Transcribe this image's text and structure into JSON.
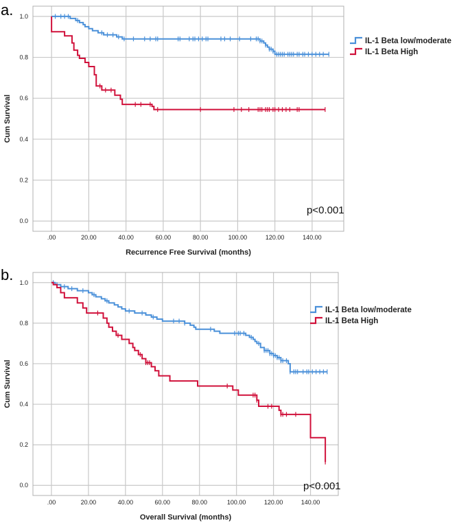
{
  "chart_data": [
    {
      "type": "line",
      "panel_label": "a.",
      "xlabel": "Recurrence Free Survival (months)",
      "ylabel": "Cum Survival",
      "xlim": [
        -10,
        157
      ],
      "ylim": [
        -0.05,
        1.05
      ],
      "xticks": [
        0,
        20,
        40,
        60,
        80,
        100,
        120,
        140
      ],
      "xtick_labels": [
        ".00",
        "20.00",
        "40.00",
        "60.00",
        "80.00",
        "100.00",
        "120.00",
        "140.00"
      ],
      "yticks": [
        0,
        0.2,
        0.4,
        0.6,
        0.8,
        1.0
      ],
      "ytick_labels": [
        "0.0",
        "0.2",
        "0.4",
        "0.6",
        "0.8",
        "1.0"
      ],
      "grid": true,
      "legend_position": "right",
      "annotation": "p<0.001",
      "series": [
        {
          "name": "IL-1 Beta low/moderate",
          "color": "#4a90d9",
          "steps": [
            [
              0,
              1.0
            ],
            [
              10,
              0.99
            ],
            [
              13,
              0.98
            ],
            [
              15,
              0.97
            ],
            [
              17,
              0.96
            ],
            [
              18,
              0.95
            ],
            [
              20,
              0.94
            ],
            [
              22,
              0.93
            ],
            [
              25,
              0.92
            ],
            [
              28,
              0.91
            ],
            [
              35,
              0.9
            ],
            [
              38,
              0.89
            ],
            [
              112,
              0.88
            ],
            [
              114,
              0.87
            ],
            [
              115,
              0.86
            ],
            [
              116,
              0.85
            ],
            [
              117,
              0.84
            ],
            [
              119,
              0.83
            ],
            [
              120,
              0.82
            ],
            [
              120,
              0.815
            ],
            [
              149,
              0.815
            ]
          ],
          "censored": [
            2,
            5,
            7,
            9,
            14,
            27,
            30,
            33,
            36,
            39,
            44,
            50,
            53,
            56,
            57,
            68,
            69,
            74,
            76,
            77,
            79,
            81,
            83,
            84,
            91,
            93,
            96,
            101,
            107,
            110,
            111,
            112,
            113,
            115,
            117,
            118,
            119,
            121,
            122,
            123,
            124,
            125,
            127,
            128,
            129,
            130,
            132,
            133,
            135,
            136,
            138,
            140,
            142,
            144,
            146,
            149
          ]
        },
        {
          "name": "IL-1 Beta High",
          "color": "#d0103a",
          "steps": [
            [
              0,
              1.0
            ],
            [
              0,
              0.925
            ],
            [
              7,
              0.905
            ],
            [
              11,
              0.87
            ],
            [
              12,
              0.835
            ],
            [
              14,
              0.81
            ],
            [
              15,
              0.795
            ],
            [
              18,
              0.775
            ],
            [
              20,
              0.755
            ],
            [
              23,
              0.715
            ],
            [
              24,
              0.66
            ],
            [
              27,
              0.64
            ],
            [
              34,
              0.615
            ],
            [
              37,
              0.595
            ],
            [
              38,
              0.57
            ],
            [
              52,
              0.57
            ],
            [
              54,
              0.56
            ],
            [
              55,
              0.545
            ],
            [
              147,
              0.545
            ]
          ],
          "censored": [
            26,
            29,
            32,
            45,
            48,
            53,
            57,
            80,
            98,
            102,
            106,
            111,
            112,
            113,
            115,
            116,
            117,
            119,
            120,
            122,
            124,
            126,
            128,
            132,
            133,
            147
          ]
        }
      ]
    },
    {
      "type": "line",
      "panel_label": "b.",
      "xlabel": "Overall Survival (months)",
      "ylabel": "Cum Survival",
      "xlim": [
        -10,
        155
      ],
      "ylim": [
        -0.05,
        1.05
      ],
      "xticks": [
        0,
        20,
        40,
        60,
        80,
        100,
        120,
        140
      ],
      "xtick_labels": [
        ".00",
        "20.00",
        "40.00",
        "60.00",
        "80.00",
        "100.00",
        "120.00",
        "140.00"
      ],
      "yticks": [
        0,
        0.2,
        0.4,
        0.6,
        0.8,
        1.0
      ],
      "ytick_labels": [
        "0.0",
        "0.2",
        "0.4",
        "0.6",
        "0.8",
        "1.0"
      ],
      "grid": true,
      "legend_position": "right",
      "annotation": "p<0.001",
      "series": [
        {
          "name": "IL-1 Beta low/moderate",
          "color": "#4a90d9",
          "steps": [
            [
              0,
              1.0
            ],
            [
              2,
              0.99
            ],
            [
              5,
              0.98
            ],
            [
              9,
              0.97
            ],
            [
              14,
              0.96
            ],
            [
              20,
              0.95
            ],
            [
              22,
              0.94
            ],
            [
              24,
              0.93
            ],
            [
              27,
              0.92
            ],
            [
              29,
              0.91
            ],
            [
              31,
              0.9
            ],
            [
              34,
              0.89
            ],
            [
              36,
              0.88
            ],
            [
              38,
              0.87
            ],
            [
              40,
              0.86
            ],
            [
              45,
              0.85
            ],
            [
              51,
              0.84
            ],
            [
              54,
              0.83
            ],
            [
              57,
              0.82
            ],
            [
              60,
              0.81
            ],
            [
              72,
              0.8
            ],
            [
              75,
              0.79
            ],
            [
              77,
              0.78
            ],
            [
              78,
              0.77
            ],
            [
              88,
              0.76
            ],
            [
              91,
              0.75
            ],
            [
              105,
              0.74
            ],
            [
              107,
              0.73
            ],
            [
              109,
              0.72
            ],
            [
              110,
              0.71
            ],
            [
              111,
              0.7
            ],
            [
              113,
              0.68
            ],
            [
              115,
              0.665
            ],
            [
              118,
              0.65
            ],
            [
              120,
              0.64
            ],
            [
              122,
              0.63
            ],
            [
              124,
              0.615
            ],
            [
              128,
              0.6
            ],
            [
              129,
              0.56
            ],
            [
              149,
              0.56
            ]
          ],
          "censored": [
            1,
            3,
            7,
            11,
            17,
            23,
            30,
            42,
            49,
            55,
            66,
            69,
            72,
            86,
            99,
            101,
            102,
            104,
            108,
            112,
            115,
            116,
            117,
            118,
            119,
            120,
            121,
            122,
            123,
            124,
            125,
            127,
            129,
            131,
            132,
            133,
            136,
            138,
            139,
            141,
            143,
            145,
            147,
            149
          ]
        },
        {
          "name": "IL-1 Beta High",
          "color": "#d0103a",
          "steps": [
            [
              0,
              1.0
            ],
            [
              1,
              0.99
            ],
            [
              3,
              0.975
            ],
            [
              5,
              0.95
            ],
            [
              7,
              0.925
            ],
            [
              14,
              0.9
            ],
            [
              17,
              0.875
            ],
            [
              19,
              0.85
            ],
            [
              28,
              0.825
            ],
            [
              30,
              0.8
            ],
            [
              31,
              0.78
            ],
            [
              33,
              0.76
            ],
            [
              35,
              0.74
            ],
            [
              38,
              0.72
            ],
            [
              42,
              0.7
            ],
            [
              44,
              0.68
            ],
            [
              45,
              0.665
            ],
            [
              47,
              0.645
            ],
            [
              49,
              0.625
            ],
            [
              51,
              0.605
            ],
            [
              54,
              0.585
            ],
            [
              56,
              0.565
            ],
            [
              58,
              0.54
            ],
            [
              64,
              0.515
            ],
            [
              79,
              0.49
            ],
            [
              98,
              0.47
            ],
            [
              101,
              0.445
            ],
            [
              111,
              0.42
            ],
            [
              112,
              0.39
            ],
            [
              123,
              0.37
            ],
            [
              124,
              0.35
            ],
            [
              140,
              0.235
            ],
            [
              148,
              0.235
            ],
            [
              148,
              0.115
            ]
          ],
          "censored": [
            25,
            36,
            48,
            51,
            52,
            53,
            95,
            109,
            110,
            111,
            117,
            119,
            124,
            125,
            127,
            132,
            148
          ]
        }
      ]
    }
  ]
}
